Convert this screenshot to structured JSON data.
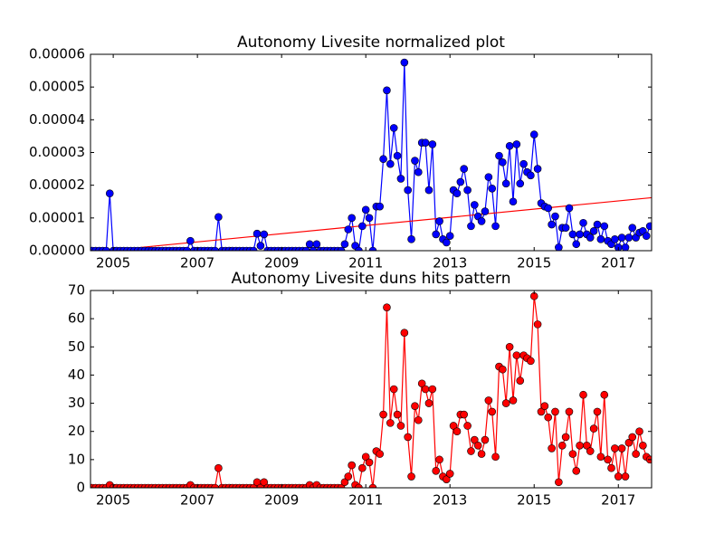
{
  "chart_data": [
    {
      "type": "line",
      "title": "Autonomy Livesite normalized plot",
      "x": [
        2004.5,
        2004.583,
        2004.667,
        2004.75,
        2004.833,
        2004.917,
        2005,
        2005.083,
        2005.167,
        2005.25,
        2005.333,
        2005.417,
        2005.5,
        2005.583,
        2005.667,
        2005.75,
        2005.833,
        2005.917,
        2006,
        2006.083,
        2006.167,
        2006.25,
        2006.333,
        2006.417,
        2006.5,
        2006.583,
        2006.667,
        2006.75,
        2006.833,
        2006.917,
        2007,
        2007.083,
        2007.167,
        2007.25,
        2007.333,
        2007.417,
        2007.5,
        2007.583,
        2007.667,
        2007.75,
        2007.833,
        2007.917,
        2008,
        2008.083,
        2008.167,
        2008.25,
        2008.333,
        2008.417,
        2008.5,
        2008.583,
        2008.667,
        2008.75,
        2008.833,
        2008.917,
        2009,
        2009.083,
        2009.167,
        2009.25,
        2009.333,
        2009.417,
        2009.5,
        2009.583,
        2009.667,
        2009.75,
        2009.833,
        2009.917,
        2010,
        2010.083,
        2010.167,
        2010.25,
        2010.333,
        2010.417,
        2010.5,
        2010.583,
        2010.667,
        2010.75,
        2010.833,
        2010.917,
        2011,
        2011.083,
        2011.167,
        2011.25,
        2011.333,
        2011.417,
        2011.5,
        2011.583,
        2011.667,
        2011.75,
        2011.833,
        2011.917,
        2012,
        2012.083,
        2012.167,
        2012.25,
        2012.333,
        2012.417,
        2012.5,
        2012.583,
        2012.667,
        2012.75,
        2012.833,
        2012.917,
        2013,
        2013.083,
        2013.167,
        2013.25,
        2013.333,
        2013.417,
        2013.5,
        2013.583,
        2013.667,
        2013.75,
        2013.833,
        2013.917,
        2014,
        2014.083,
        2014.167,
        2014.25,
        2014.333,
        2014.417,
        2014.5,
        2014.583,
        2014.667,
        2014.75,
        2014.833,
        2014.917,
        2015,
        2015.083,
        2015.167,
        2015.25,
        2015.333,
        2015.417,
        2015.5,
        2015.583,
        2015.667,
        2015.75,
        2015.833,
        2015.917,
        2016,
        2016.083,
        2016.167,
        2016.25,
        2016.333,
        2016.417,
        2016.5,
        2016.583,
        2016.667,
        2016.75,
        2016.833,
        2016.917,
        2017,
        2017.083,
        2017.167,
        2017.25,
        2017.333,
        2017.417,
        2017.5,
        2017.583,
        2017.667,
        2017.75
      ],
      "series": [
        {
          "color": "#0000ff",
          "values": [
            0,
            0,
            0,
            0,
            0,
            1.75e-05,
            0,
            0,
            0,
            0,
            0,
            0,
            0,
            0,
            0,
            0,
            0,
            0,
            0,
            0,
            0,
            0,
            0,
            0,
            0,
            0,
            0,
            0,
            3e-06,
            0,
            0,
            0,
            0,
            0,
            0,
            0,
            1.03e-05,
            0,
            0,
            0,
            0,
            0,
            0,
            0,
            0,
            0,
            0,
            5.2e-06,
            1.5e-06,
            5e-06,
            0,
            0,
            0,
            0,
            0,
            0,
            0,
            0,
            0,
            0,
            0,
            0,
            2e-06,
            0,
            2e-06,
            0,
            0,
            0,
            0,
            0,
            0,
            0,
            2e-06,
            6.5e-06,
            1e-05,
            1.5e-06,
            0,
            7.5e-06,
            1.25e-05,
            1e-05,
            0,
            1.35e-05,
            1.35e-05,
            2.8e-05,
            4.9e-05,
            2.65e-05,
            3.75e-05,
            2.9e-05,
            2.2e-05,
            5.75e-05,
            1.85e-05,
            3.5e-06,
            2.75e-05,
            2.4e-05,
            3.3e-05,
            3.3e-05,
            1.85e-05,
            3.25e-05,
            5e-06,
            9e-06,
            3.5e-06,
            2.5e-06,
            4.5e-06,
            1.85e-05,
            1.75e-05,
            2.1e-05,
            2.5e-05,
            1.85e-05,
            7.5e-06,
            1.4e-05,
            1.05e-05,
            9e-06,
            1.2e-05,
            2.25e-05,
            1.9e-05,
            7.5e-06,
            2.9e-05,
            2.7e-05,
            2.05e-05,
            3.2e-05,
            1.5e-05,
            3.25e-05,
            2.05e-05,
            2.65e-05,
            2.4e-05,
            2.3e-05,
            3.55e-05,
            2.5e-05,
            1.45e-05,
            1.35e-05,
            1.3e-05,
            8e-06,
            1.05e-05,
            1e-06,
            7e-06,
            7e-06,
            1.3e-05,
            5e-06,
            2e-06,
            5e-06,
            8.5e-06,
            5e-06,
            4e-06,
            6e-06,
            8e-06,
            3.5e-06,
            7.5e-06,
            3e-06,
            2e-06,
            3.5e-06,
            1e-06,
            4e-06,
            1e-06,
            4e-06,
            7e-06,
            4e-06,
            5.5e-06,
            6e-06,
            4.5e-06,
            7.5e-06
          ]
        }
      ],
      "trend": {
        "x": [
          2004.46,
          2017.79
        ],
        "values": [
          -5e-07,
          1.62e-05
        ],
        "color": "#ff0000"
      },
      "xlim": [
        2004.46,
        2017.79
      ],
      "xticks": [
        2005,
        2007,
        2009,
        2011,
        2013,
        2015,
        2017
      ],
      "ylim": [
        0,
        6e-05
      ],
      "yticks": [
        {
          "value": 0,
          "label": "0.00000"
        },
        {
          "value": 1e-05,
          "label": "0.00001"
        },
        {
          "value": 2e-05,
          "label": "0.00002"
        },
        {
          "value": 3e-05,
          "label": "0.00003"
        },
        {
          "value": 4e-05,
          "label": "0.00004"
        },
        {
          "value": 5e-05,
          "label": "0.00005"
        },
        {
          "value": 6e-05,
          "label": "0.00006"
        }
      ]
    },
    {
      "type": "line",
      "title": "Autonomy Livesite duns hits pattern",
      "x": [
        2004.5,
        2004.583,
        2004.667,
        2004.75,
        2004.833,
        2004.917,
        2005,
        2005.083,
        2005.167,
        2005.25,
        2005.333,
        2005.417,
        2005.5,
        2005.583,
        2005.667,
        2005.75,
        2005.833,
        2005.917,
        2006,
        2006.083,
        2006.167,
        2006.25,
        2006.333,
        2006.417,
        2006.5,
        2006.583,
        2006.667,
        2006.75,
        2006.833,
        2006.917,
        2007,
        2007.083,
        2007.167,
        2007.25,
        2007.333,
        2007.417,
        2007.5,
        2007.583,
        2007.667,
        2007.75,
        2007.833,
        2007.917,
        2008,
        2008.083,
        2008.167,
        2008.25,
        2008.333,
        2008.417,
        2008.5,
        2008.583,
        2008.667,
        2008.75,
        2008.833,
        2008.917,
        2009,
        2009.083,
        2009.167,
        2009.25,
        2009.333,
        2009.417,
        2009.5,
        2009.583,
        2009.667,
        2009.75,
        2009.833,
        2009.917,
        2010,
        2010.083,
        2010.167,
        2010.25,
        2010.333,
        2010.417,
        2010.5,
        2010.583,
        2010.667,
        2010.75,
        2010.833,
        2010.917,
        2011,
        2011.083,
        2011.167,
        2011.25,
        2011.333,
        2011.417,
        2011.5,
        2011.583,
        2011.667,
        2011.75,
        2011.833,
        2011.917,
        2012,
        2012.083,
        2012.167,
        2012.25,
        2012.333,
        2012.417,
        2012.5,
        2012.583,
        2012.667,
        2012.75,
        2012.833,
        2012.917,
        2013,
        2013.083,
        2013.167,
        2013.25,
        2013.333,
        2013.417,
        2013.5,
        2013.583,
        2013.667,
        2013.75,
        2013.833,
        2013.917,
        2014,
        2014.083,
        2014.167,
        2014.25,
        2014.333,
        2014.417,
        2014.5,
        2014.583,
        2014.667,
        2014.75,
        2014.833,
        2014.917,
        2015,
        2015.083,
        2015.167,
        2015.25,
        2015.333,
        2015.417,
        2015.5,
        2015.583,
        2015.667,
        2015.75,
        2015.833,
        2015.917,
        2016,
        2016.083,
        2016.167,
        2016.25,
        2016.333,
        2016.417,
        2016.5,
        2016.583,
        2016.667,
        2016.75,
        2016.833,
        2016.917,
        2017,
        2017.083,
        2017.167,
        2017.25,
        2017.333,
        2017.417,
        2017.5,
        2017.583,
        2017.667,
        2017.75
      ],
      "series": [
        {
          "color": "#ff0000",
          "values": [
            0,
            0,
            0,
            0,
            0,
            1,
            0,
            0,
            0,
            0,
            0,
            0,
            0,
            0,
            0,
            0,
            0,
            0,
            0,
            0,
            0,
            0,
            0,
            0,
            0,
            0,
            0,
            0,
            1,
            0,
            0,
            0,
            0,
            0,
            0,
            0,
            7,
            0,
            0,
            0,
            0,
            0,
            0,
            0,
            0,
            0,
            0,
            2,
            0,
            2,
            0,
            0,
            0,
            0,
            0,
            0,
            0,
            0,
            0,
            0,
            0,
            0,
            1,
            0,
            1,
            0,
            0,
            0,
            0,
            0,
            0,
            0,
            2,
            4,
            8,
            1,
            0,
            7,
            11,
            9,
            0,
            13,
            12,
            26,
            64,
            23,
            35,
            26,
            22,
            55,
            18,
            4,
            29,
            24,
            37,
            35,
            30,
            35,
            6,
            10,
            4,
            3,
            5,
            22,
            20,
            26,
            26,
            22,
            13,
            17,
            15,
            12,
            17,
            31,
            27,
            11,
            43,
            42,
            30,
            50,
            31,
            47,
            38,
            47,
            46,
            45,
            68,
            58,
            27,
            29,
            25,
            14,
            27,
            2,
            15,
            18,
            27,
            12,
            6,
            15,
            33,
            15,
            13,
            21,
            27,
            11,
            33,
            10,
            7,
            14,
            4,
            14,
            4,
            16,
            18,
            12,
            20,
            15,
            11,
            10
          ]
        }
      ],
      "xlim": [
        2004.46,
        2017.79
      ],
      "xticks": [
        2005,
        2007,
        2009,
        2011,
        2013,
        2015,
        2017
      ],
      "ylim": [
        0,
        70
      ],
      "yticks": [
        0,
        10,
        20,
        30,
        40,
        50,
        60,
        70
      ]
    }
  ]
}
